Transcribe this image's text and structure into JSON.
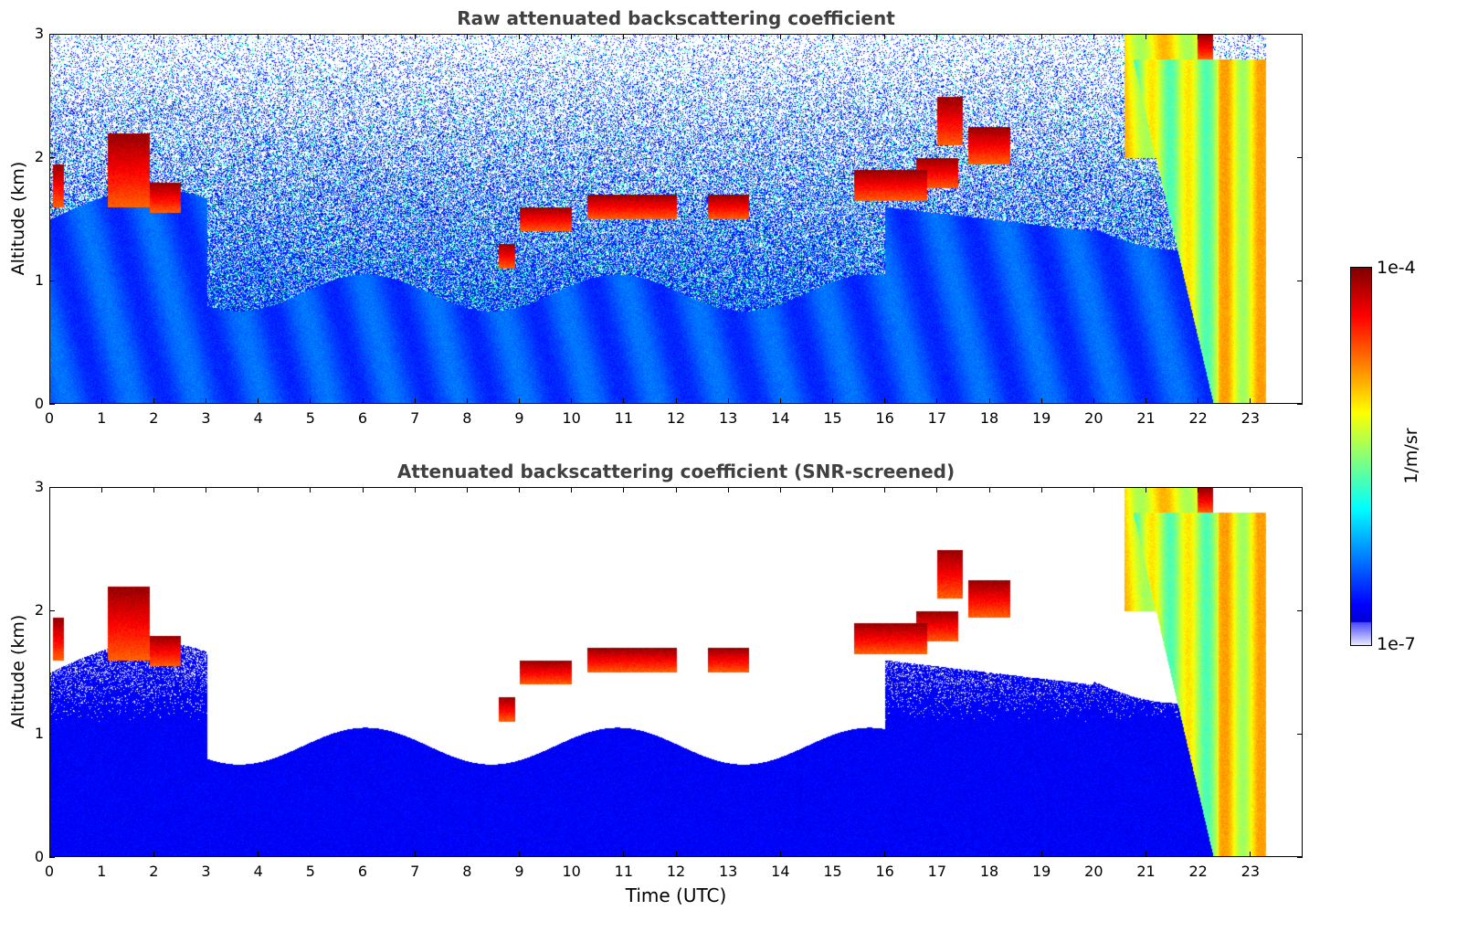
{
  "chart_data": [
    {
      "type": "heatmap",
      "title": "Raw attenuated backscattering coefficient",
      "xlabel": "",
      "ylabel": "Altitude (km)",
      "xlim": [
        0,
        24
      ],
      "ylim": [
        0,
        3
      ],
      "xticks": [
        "0",
        "1",
        "2",
        "3",
        "4",
        "5",
        "6",
        "7",
        "8",
        "9",
        "10",
        "11",
        "12",
        "13",
        "14",
        "15",
        "16",
        "17",
        "18",
        "19",
        "20",
        "21",
        "22",
        "23"
      ],
      "yticks": [
        "0",
        "1",
        "2",
        "3"
      ],
      "data_end_hour": 23.3,
      "features": [
        {
          "kind": "cloud_base",
          "x": [
            0,
            2.5
          ],
          "y": [
            1.5,
            2.1
          ]
        },
        {
          "kind": "cloud_base",
          "x": [
            8.5,
            13.5
          ],
          "y": [
            1.1,
            1.7
          ]
        },
        {
          "kind": "cloud_layer",
          "x": [
            15.5,
            18.5
          ],
          "y": [
            1.6,
            2.4
          ]
        },
        {
          "kind": "thick_cloud",
          "x": [
            20,
            23.3
          ],
          "y": [
            0,
            3
          ]
        }
      ]
    },
    {
      "type": "heatmap",
      "title": "Attenuated backscattering coefficient (SNR-screened)",
      "xlabel": "Time (UTC)",
      "ylabel": "Altitude (km)",
      "xlim": [
        0,
        24
      ],
      "ylim": [
        0,
        3
      ],
      "xticks": [
        "0",
        "1",
        "2",
        "3",
        "4",
        "5",
        "6",
        "7",
        "8",
        "9",
        "10",
        "11",
        "12",
        "13",
        "14",
        "15",
        "16",
        "17",
        "18",
        "19",
        "20",
        "21",
        "22",
        "23"
      ],
      "yticks": [
        "0",
        "1",
        "2",
        "3"
      ],
      "data_end_hour": 23.3
    }
  ],
  "colorbar": {
    "max_label": "1e-4",
    "min_label": "1e-7",
    "unit": "1/m/sr",
    "scale": "log"
  }
}
